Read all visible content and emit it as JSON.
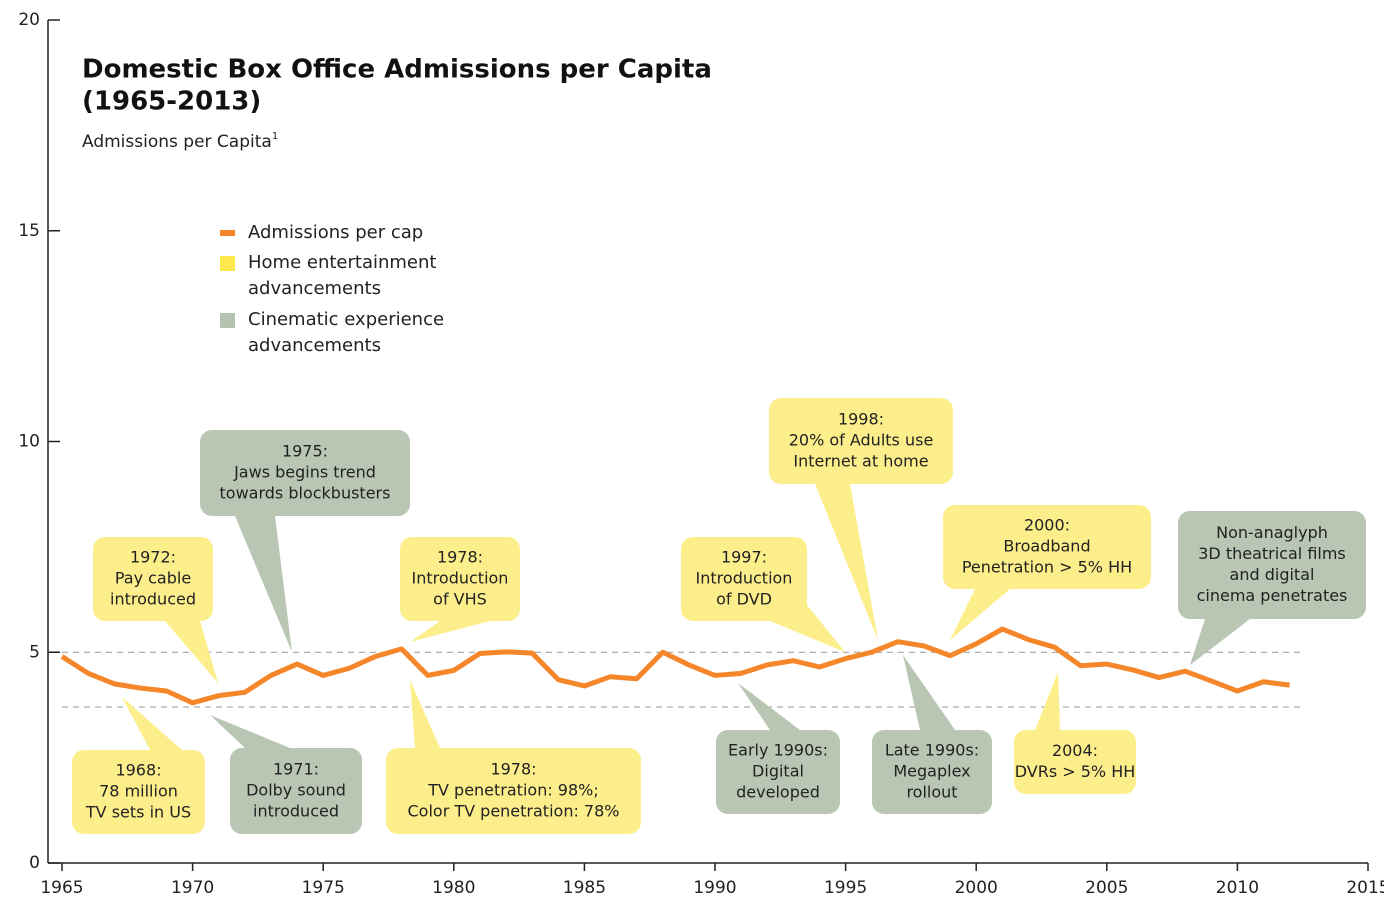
{
  "chart_data": {
    "type": "line",
    "title": [
      "Domestic Box Office Admissions per Capita",
      "(1965-2013)"
    ],
    "subtitle": "Admissions per Capita",
    "subtitle_note": "1",
    "x": [
      1965,
      1966,
      1967,
      1968,
      1969,
      1970,
      1971,
      1972,
      1973,
      1974,
      1975,
      1976,
      1977,
      1978,
      1979,
      1980,
      1981,
      1982,
      1983,
      1984,
      1985,
      1986,
      1987,
      1988,
      1989,
      1990,
      1991,
      1992,
      1993,
      1994,
      1995,
      1996,
      1997,
      1998,
      1999,
      2000,
      2001,
      2002,
      2003,
      2004,
      2005,
      2006,
      2007,
      2008,
      2009,
      2010,
      2011,
      2012
    ],
    "series": [
      {
        "name": "Admissions per cap",
        "color": "#f5862a",
        "values": [
          4.9,
          4.5,
          4.25,
          4.15,
          4.08,
          3.8,
          3.97,
          4.05,
          4.45,
          4.72,
          4.45,
          4.62,
          4.9,
          5.08,
          4.45,
          4.57,
          4.97,
          5.01,
          4.98,
          4.35,
          4.2,
          4.42,
          4.37,
          5.0,
          4.7,
          4.45,
          4.5,
          4.7,
          4.8,
          4.65,
          4.85,
          5.0,
          5.25,
          5.15,
          4.92,
          5.2,
          5.55,
          5.3,
          5.12,
          4.68,
          4.72,
          4.58,
          4.4,
          4.55,
          4.32,
          4.08,
          4.3,
          4.22
        ]
      }
    ],
    "annotation_categories": [
      {
        "name": "Home entertainment advancements",
        "color": "#fdee8c",
        "legend_color": "#fde84c"
      },
      {
        "name": "Cinematic experience advancements",
        "color": "#b9c6b4",
        "legend_color": "#b5c4b1"
      }
    ],
    "annotations": [
      {
        "category": 0,
        "lines": [
          "1968:",
          "78 million",
          "TV sets in US"
        ]
      },
      {
        "category": 1,
        "lines": [
          "1971:",
          "Dolby sound",
          "introduced"
        ]
      },
      {
        "category": 0,
        "lines": [
          "1972:",
          "Pay cable",
          "introduced"
        ]
      },
      {
        "category": 1,
        "lines": [
          "1975:",
          "Jaws begins trend",
          "towards blockbusters"
        ]
      },
      {
        "category": 0,
        "lines": [
          "1978:",
          "Introduction",
          "of VHS"
        ]
      },
      {
        "category": 0,
        "lines": [
          "1978:",
          "TV penetration: 98%;",
          "Color TV penetration: 78%"
        ]
      },
      {
        "category": 1,
        "lines": [
          "Early 1990s:",
          "Digital",
          "developed"
        ]
      },
      {
        "category": 0,
        "lines": [
          "1997:",
          "Introduction",
          "of DVD"
        ]
      },
      {
        "category": 0,
        "lines": [
          "1998:",
          "20% of Adults use",
          "Internet at home"
        ]
      },
      {
        "category": 1,
        "lines": [
          "Late 1990s:",
          "Megaplex",
          "rollout"
        ]
      },
      {
        "category": 0,
        "lines": [
          "2000:",
          "Broadband",
          "Penetration > 5% HH"
        ]
      },
      {
        "category": 0,
        "lines": [
          "2004:",
          "DVRs > 5% HH"
        ]
      },
      {
        "category": 1,
        "lines": [
          "Non-anaglyph",
          "3D theatrical films",
          "and digital",
          "cinema penetrates"
        ]
      }
    ],
    "reference_lines": [
      5,
      3.7
    ],
    "xlim": [
      1965,
      2015
    ],
    "xticks": [
      1965,
      1970,
      1975,
      1980,
      1985,
      1990,
      1995,
      2000,
      2005,
      2010,
      2015
    ],
    "ylim": [
      0,
      20
    ],
    "yticks": [
      0,
      5,
      10,
      15,
      20
    ]
  }
}
